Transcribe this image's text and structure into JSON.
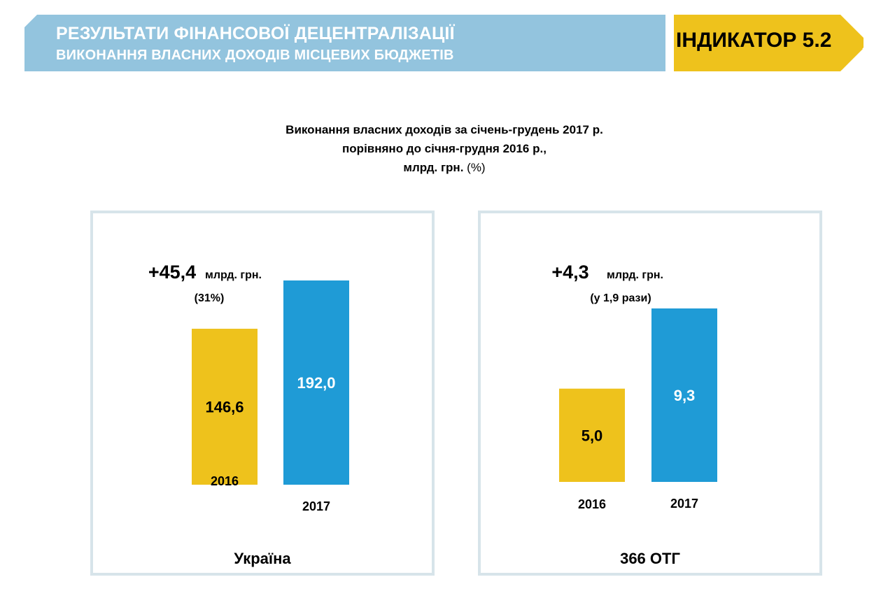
{
  "header": {
    "title": "РЕЗУЛЬТАТИ ФІНАНСОВОЇ ДЕЦЕНТРАЛІЗАЦІЇ",
    "subtitle": "ВИКОНАННЯ ВЛАСНИХ ДОХОДІВ МІСЦЕВИХ БЮДЖЕТІВ",
    "indicator": "ІНДИКАТОР 5.2"
  },
  "chart_title": {
    "line1": "Виконання власних доходів за січень-грудень 2017 р.",
    "line2": "порівняно до січня-грудня 2016 р.,",
    "line3_bold": "млрд. грн.",
    "line3_normal": "(%)"
  },
  "colors": {
    "header_blue": "#93c4de",
    "indicator_yellow": "#eec21c",
    "bar_2016": "#eec21c",
    "bar_2017": "#1f9bd6",
    "panel_border": "#d7e4ea"
  },
  "chart_data": [
    {
      "type": "bar",
      "title": "Україна",
      "categories": [
        "2016",
        "2017"
      ],
      "values": [
        146.6,
        192.0
      ],
      "value_labels": [
        "146,6",
        "192,0"
      ],
      "ylim": [
        0,
        210
      ],
      "annotation": {
        "value": "+45,4",
        "unit": "млрд. грн.",
        "note": "(31%)"
      }
    },
    {
      "type": "bar",
      "title": "366 ОТГ",
      "categories": [
        "2016",
        "2017"
      ],
      "values": [
        5.0,
        9.3
      ],
      "value_labels": [
        "5,0",
        "9,3"
      ],
      "ylim": [
        0,
        12
      ],
      "annotation": {
        "value": "+4,3",
        "unit": "млрд. грн.",
        "note": "(у 1,9 рази)"
      }
    }
  ]
}
